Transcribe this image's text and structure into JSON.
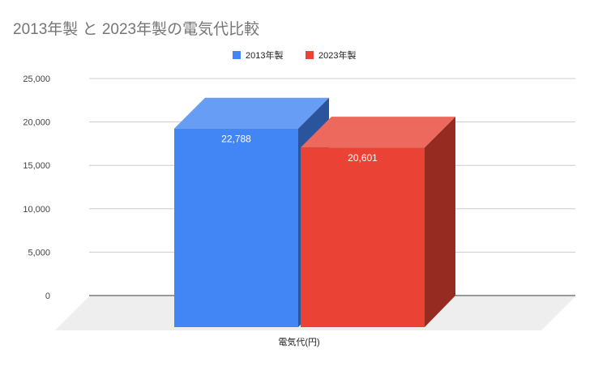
{
  "chart_data": {
    "type": "bar",
    "three_d": true,
    "title": "2013年製 と 2023年製の電気代比較",
    "xlabel": "",
    "ylabel": "",
    "categories": [
      "電気代(円)"
    ],
    "series": [
      {
        "name": "2013年製",
        "values": [
          22788
        ],
        "labels": [
          "22,788"
        ],
        "color": "#4285f4"
      },
      {
        "name": "2023年製",
        "values": [
          20601
        ],
        "labels": [
          "20,601"
        ],
        "color": "#ea4335"
      }
    ],
    "ylim": [
      0,
      25000
    ],
    "yticks": [
      0,
      5000,
      10000,
      15000,
      20000,
      25000
    ],
    "ytick_labels": [
      "0",
      "5,000",
      "10,000",
      "15,000",
      "20,000",
      "25,000"
    ],
    "grid": true,
    "legend": "top-center"
  }
}
